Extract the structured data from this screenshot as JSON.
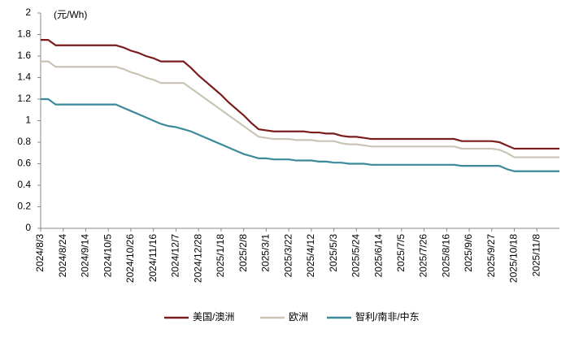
{
  "chart_data": {
    "type": "line",
    "y_label": "(元/Wh)",
    "categories": [
      "2024/8/3",
      null,
      null,
      "2024/8/24",
      null,
      null,
      "2024/9/14",
      null,
      null,
      "2024/10/5",
      null,
      null,
      "2024/10/26",
      null,
      null,
      "2024/11/16",
      null,
      null,
      "2024/12/7",
      null,
      null,
      "2024/12/28",
      null,
      null,
      "2025/1/18",
      null,
      null,
      "2025/2/8",
      null,
      null,
      "2025/3/1",
      null,
      null,
      "2025/3/22",
      null,
      null,
      "2025/4/12",
      null,
      null,
      "2025/5/3",
      null,
      null,
      "2025/5/24",
      null,
      null,
      "2025/6/14",
      null,
      null,
      "2025/7/5",
      null,
      null,
      "2025/7/26",
      null,
      null,
      "2025/8/16",
      null,
      null,
      "2025/9/6",
      null,
      null,
      "2025/9/27",
      null,
      null,
      "2025/10/18",
      null,
      null,
      "2025/11/8",
      null,
      null,
      null
    ],
    "series": [
      {
        "name": "美国/澳洲",
        "color": "#7b1c1c",
        "values": [
          1.75,
          1.75,
          1.7,
          1.7,
          1.7,
          1.7,
          1.7,
          1.7,
          1.7,
          1.7,
          1.7,
          1.68,
          1.65,
          1.63,
          1.6,
          1.58,
          1.55,
          1.55,
          1.55,
          1.55,
          1.49,
          1.42,
          1.36,
          1.3,
          1.24,
          1.17,
          1.11,
          1.05,
          0.98,
          0.92,
          0.91,
          0.9,
          0.9,
          0.9,
          0.9,
          0.9,
          0.89,
          0.89,
          0.88,
          0.88,
          0.86,
          0.85,
          0.85,
          0.84,
          0.83,
          0.83,
          0.83,
          0.83,
          0.83,
          0.83,
          0.83,
          0.83,
          0.83,
          0.83,
          0.83,
          0.83,
          0.81,
          0.81,
          0.81,
          0.81,
          0.81,
          0.8,
          0.77,
          0.74,
          0.74,
          0.74,
          0.74,
          0.74,
          0.74,
          0.74
        ]
      },
      {
        "name": "欧洲",
        "color": "#c9c4b4",
        "values": [
          1.55,
          1.55,
          1.5,
          1.5,
          1.5,
          1.5,
          1.5,
          1.5,
          1.5,
          1.5,
          1.5,
          1.48,
          1.45,
          1.43,
          1.4,
          1.38,
          1.35,
          1.35,
          1.35,
          1.35,
          1.3,
          1.25,
          1.2,
          1.15,
          1.1,
          1.05,
          1.0,
          0.95,
          0.9,
          0.85,
          0.84,
          0.83,
          0.83,
          0.83,
          0.82,
          0.82,
          0.82,
          0.81,
          0.81,
          0.81,
          0.79,
          0.78,
          0.78,
          0.77,
          0.76,
          0.76,
          0.76,
          0.76,
          0.76,
          0.76,
          0.76,
          0.76,
          0.76,
          0.76,
          0.76,
          0.76,
          0.74,
          0.74,
          0.74,
          0.74,
          0.74,
          0.73,
          0.7,
          0.66,
          0.66,
          0.66,
          0.66,
          0.66,
          0.66,
          0.66
        ]
      },
      {
        "name": "智利/南非/中东",
        "color": "#3b8a9b",
        "values": [
          1.2,
          1.2,
          1.15,
          1.15,
          1.15,
          1.15,
          1.15,
          1.15,
          1.15,
          1.15,
          1.15,
          1.12,
          1.09,
          1.06,
          1.03,
          1.0,
          0.97,
          0.95,
          0.94,
          0.92,
          0.9,
          0.87,
          0.84,
          0.81,
          0.78,
          0.75,
          0.72,
          0.69,
          0.67,
          0.65,
          0.65,
          0.64,
          0.64,
          0.64,
          0.63,
          0.63,
          0.63,
          0.62,
          0.62,
          0.61,
          0.61,
          0.6,
          0.6,
          0.6,
          0.59,
          0.59,
          0.59,
          0.59,
          0.59,
          0.59,
          0.59,
          0.59,
          0.59,
          0.59,
          0.59,
          0.59,
          0.58,
          0.58,
          0.58,
          0.58,
          0.58,
          0.58,
          0.55,
          0.53,
          0.53,
          0.53,
          0.53,
          0.53,
          0.53,
          0.53
        ]
      }
    ],
    "ylim": [
      0,
      2
    ],
    "yticks": [
      0,
      0.2,
      0.4,
      0.6,
      0.8,
      1,
      1.2,
      1.4,
      1.6,
      1.8,
      2
    ],
    "legend": "bottom"
  }
}
